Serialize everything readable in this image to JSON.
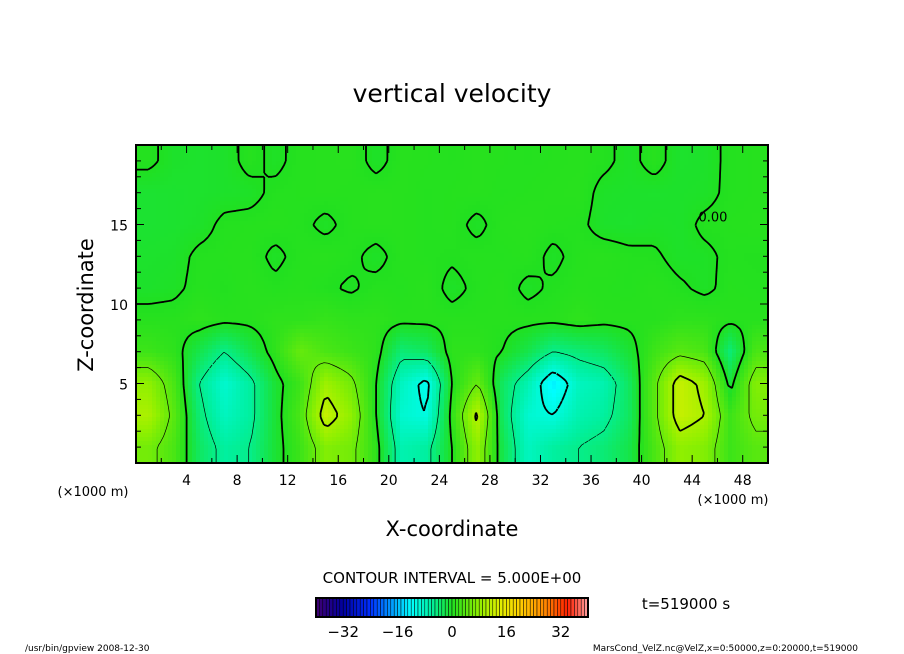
{
  "chart_data": {
    "type": "heatmap",
    "title": "vertical velocity",
    "xlabel": "X-coordinate",
    "ylabel": "Z-coordinate",
    "x_unit_label": "(×1000 m)",
    "xlim": [
      0,
      50
    ],
    "ylim": [
      0,
      20
    ],
    "x_ticks": [
      4,
      8,
      12,
      16,
      20,
      24,
      28,
      32,
      36,
      40,
      44,
      48
    ],
    "y_ticks": [
      5,
      10,
      15
    ],
    "contour_interval_label": "CONTOUR INTERVAL = 5.000E+00",
    "contour_levels": [
      -10,
      -5,
      0,
      5,
      10
    ],
    "contour_zero_label": "0.00",
    "time_label": "t=519000 s",
    "grid": {
      "x": [
        1,
        3,
        5,
        7,
        9,
        11,
        13,
        15,
        17,
        19,
        21,
        23,
        25,
        27,
        29,
        31,
        33,
        35,
        37,
        39,
        41,
        43,
        45,
        47,
        49
      ],
      "z": [
        1,
        3,
        5,
        7,
        9,
        11,
        13,
        15,
        17,
        19
      ],
      "values": [
        [
          6,
          3,
          -3,
          -6,
          -5,
          -1,
          2,
          7,
          6,
          1,
          -7,
          -6,
          0,
          8,
          -2,
          -8,
          -6,
          -5,
          -4,
          -2,
          3,
          8,
          7,
          2,
          4
        ],
        [
          10,
          4,
          -4,
          -8,
          -6,
          -1,
          3,
          12,
          8,
          0,
          -9,
          -10,
          1,
          11,
          -3,
          -9,
          -10,
          -7,
          -6,
          -3,
          4,
          12,
          10,
          2,
          6
        ],
        [
          8,
          3,
          -5,
          -9,
          -6,
          -1,
          2,
          9,
          6,
          0,
          -8,
          -11,
          0,
          5,
          -3,
          -7,
          -13,
          -8,
          -7,
          -3,
          4,
          12,
          9,
          -1,
          7
        ],
        [
          2,
          1,
          -2,
          -5,
          -2,
          1,
          5,
          3,
          2,
          1,
          -4,
          -3,
          1,
          1,
          0,
          -2,
          -5,
          -4,
          -3,
          -1,
          2,
          4,
          3,
          -4,
          3
        ],
        [
          0.5,
          0.5,
          1,
          0.5,
          0.5,
          1,
          1,
          1.5,
          1,
          1,
          0.5,
          0.5,
          0.5,
          0.5,
          0.5,
          0.5,
          0.5,
          1,
          0.5,
          0.5,
          0.5,
          1,
          1,
          0.5,
          0.5
        ],
        [
          -0.5,
          -0.3,
          0.4,
          0.2,
          0.6,
          0.3,
          0.5,
          0.2,
          -0.2,
          0.4,
          0.3,
          0.6,
          -0.4,
          0.3,
          0.5,
          -0.3,
          0.2,
          0.5,
          0.4,
          0.3,
          0.6,
          0.2,
          -0.3,
          0.4,
          0.3
        ],
        [
          -0.6,
          -0.5,
          0.3,
          0.4,
          0.5,
          -0.3,
          0.4,
          0.6,
          0.3,
          -0.4,
          0.5,
          0.3,
          0.2,
          0.4,
          0.3,
          0.5,
          -0.3,
          0.4,
          0.6,
          0.3,
          0.2,
          -0.4,
          -0.3,
          0.3,
          0.2
        ],
        [
          -0.8,
          -0.7,
          -0.5,
          0.3,
          0.4,
          0.5,
          0.3,
          -0.3,
          0.4,
          0.6,
          0.5,
          0.3,
          0.4,
          -0.3,
          0.5,
          0.6,
          0.4,
          0.3,
          -0.5,
          -0.6,
          -0.4,
          -0.5,
          0.3,
          0.4,
          0.5
        ],
        [
          -0.8,
          -0.7,
          -0.6,
          -0.5,
          -0.4,
          0.3,
          0.4,
          0.5,
          0.4,
          0.6,
          0.5,
          0.3,
          0.4,
          0.5,
          0.3,
          0.4,
          0.5,
          0.6,
          -0.4,
          -0.5,
          -0.6,
          -0.5,
          -0.4,
          0.3,
          0.4
        ],
        [
          0.3,
          -0.5,
          -0.6,
          -0.5,
          0.4,
          -0.3,
          0.4,
          0.5,
          0.6,
          -0.4,
          0.5,
          0.4,
          0.3,
          0.5,
          0.4,
          0.3,
          0.4,
          0.5,
          0.3,
          -0.4,
          0.5,
          -0.6,
          -0.5,
          0.3,
          0.4
        ]
      ]
    },
    "colorbar": {
      "min": -40,
      "max": 40,
      "ticks": [
        -32,
        -16,
        0,
        16,
        32
      ],
      "colormap": [
        "#400070",
        "#0000a0",
        "#0030ff",
        "#00ffff",
        "#00f0a0",
        "#20e020",
        "#90f000",
        "#e0f000",
        "#ffd000",
        "#ff8000",
        "#ff2000",
        "#ffa0a0"
      ],
      "colormap_values": [
        -40,
        -32,
        -24,
        -12,
        -6,
        0,
        8,
        14,
        20,
        28,
        34,
        40
      ]
    }
  },
  "footer": {
    "left": "/usr/bin/gpview   2008-12-30",
    "right": "MarsCond_VelZ.nc@VelZ,x=0:50000,z=0:20000,t=519000"
  }
}
